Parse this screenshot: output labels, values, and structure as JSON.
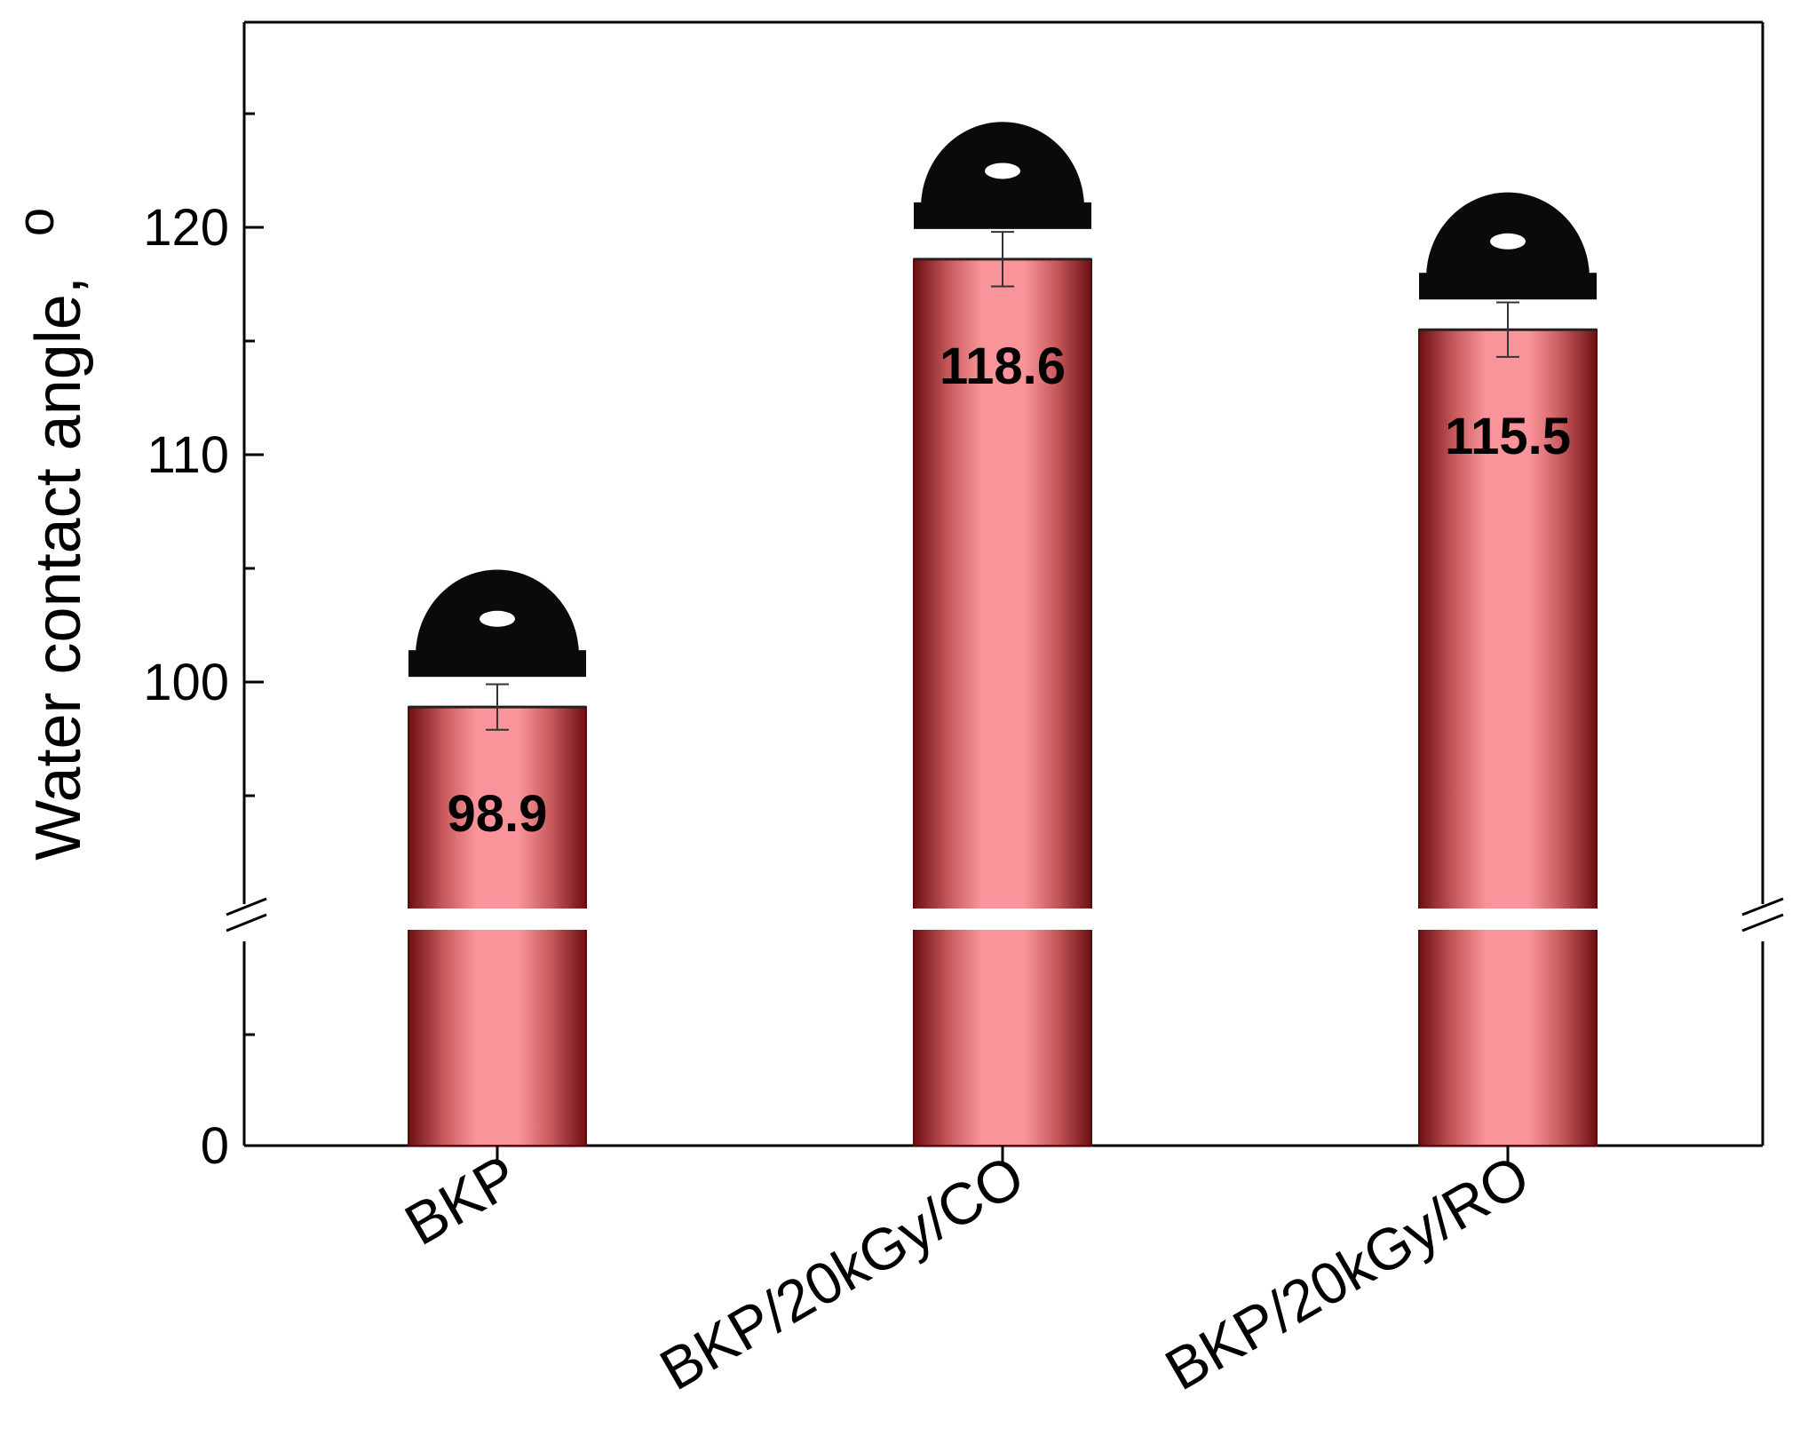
{
  "chart_data": {
    "type": "bar",
    "categories": [
      "BKP",
      "BKP/20kGy/CO",
      "BKP/20kGy/RO"
    ],
    "values": [
      98.9,
      118.6,
      115.5
    ],
    "errors": [
      1.0,
      1.2,
      1.2
    ],
    "value_labels": [
      "98.9",
      "118.6",
      "115.5"
    ],
    "ylabel": "Water contact angle, °",
    "ylabel_text": "Water contact angle,",
    "ylabel_unit": "o",
    "y_break": true,
    "y_ticks_lower": [
      0
    ],
    "y_ticks_upper": [
      100,
      110,
      120
    ],
    "y_tick_labels": [
      "0",
      "100",
      "110",
      "120"
    ],
    "ylim_upper": [
      90,
      130
    ],
    "bar_color": "#f9959a",
    "bar_edge_color": "#7a1518",
    "droplet_images": true,
    "grid": false,
    "legend": "none"
  }
}
